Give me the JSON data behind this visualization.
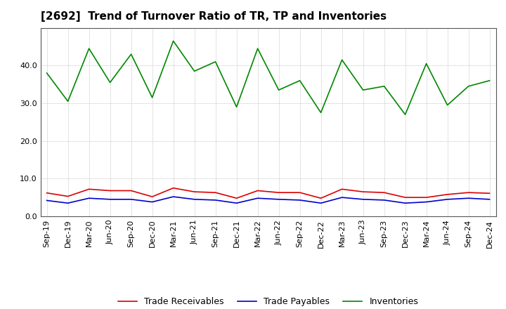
{
  "title": "[2692]  Trend of Turnover Ratio of TR, TP and Inventories",
  "x_labels": [
    "Sep-19",
    "Dec-19",
    "Mar-20",
    "Jun-20",
    "Sep-20",
    "Dec-20",
    "Mar-21",
    "Jun-21",
    "Sep-21",
    "Dec-21",
    "Mar-22",
    "Jun-22",
    "Sep-22",
    "Dec-22",
    "Mar-23",
    "Jun-23",
    "Sep-23",
    "Dec-23",
    "Mar-24",
    "Jun-24",
    "Sep-24",
    "Dec-24"
  ],
  "trade_receivables": [
    6.2,
    5.3,
    7.2,
    6.8,
    6.8,
    5.2,
    7.5,
    6.5,
    6.3,
    4.8,
    6.8,
    6.3,
    6.3,
    4.8,
    7.2,
    6.5,
    6.3,
    5.0,
    5.0,
    5.8,
    6.3,
    6.1
  ],
  "trade_payables": [
    4.2,
    3.5,
    4.8,
    4.5,
    4.5,
    3.8,
    5.2,
    4.5,
    4.3,
    3.5,
    4.8,
    4.5,
    4.3,
    3.5,
    5.0,
    4.5,
    4.3,
    3.5,
    3.8,
    4.5,
    4.8,
    4.5
  ],
  "inventories": [
    38.0,
    30.5,
    44.5,
    35.5,
    43.0,
    31.5,
    46.5,
    38.5,
    41.0,
    29.0,
    44.5,
    33.5,
    36.0,
    27.5,
    41.5,
    33.5,
    34.5,
    27.0,
    40.5,
    29.5,
    34.5,
    36.0
  ],
  "colors": {
    "trade_receivables": "#dd0000",
    "trade_payables": "#0000cc",
    "inventories": "#008800"
  },
  "ylim": [
    0,
    50
  ],
  "yticks": [
    0.0,
    10.0,
    20.0,
    30.0,
    40.0
  ],
  "legend_labels": [
    "Trade Receivables",
    "Trade Payables",
    "Inventories"
  ],
  "bg_color": "#ffffff",
  "plot_bg_color": "#ffffff",
  "grid_color": "#aaaaaa",
  "title_fontsize": 11,
  "axis_fontsize": 8,
  "legend_fontsize": 9
}
